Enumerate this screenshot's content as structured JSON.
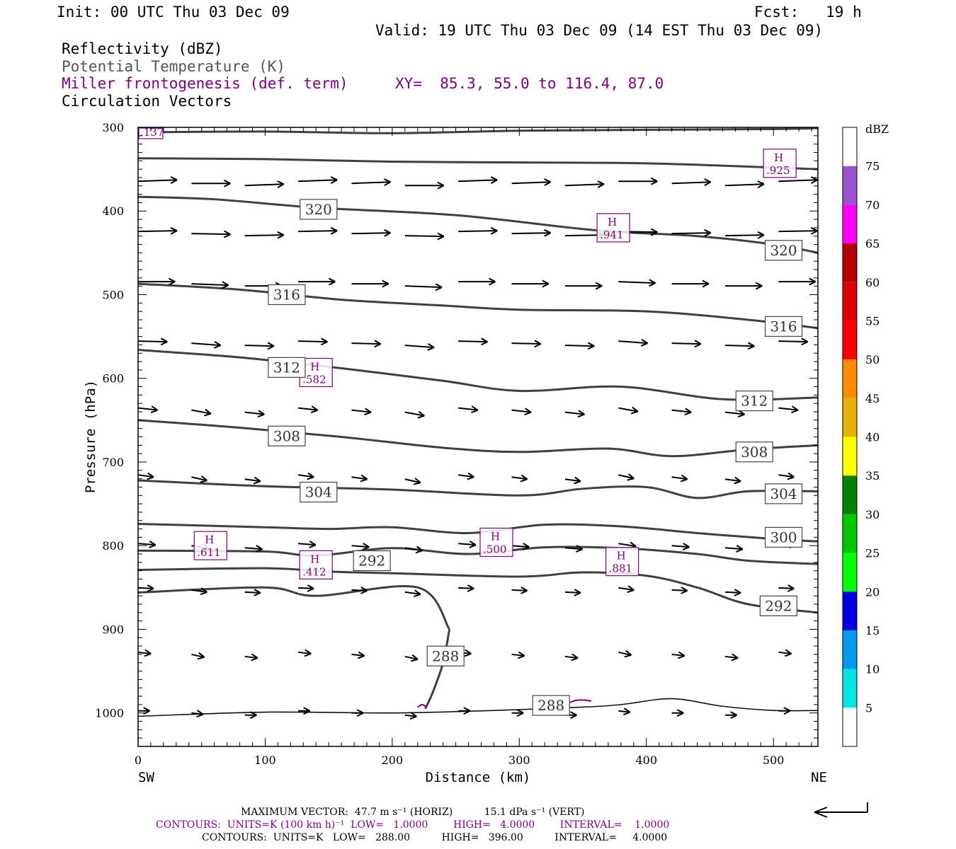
{
  "header": {
    "init": "Init: 00 UTC Thu 03 Dec 09",
    "fcst": "Fcst:   19 h",
    "valid": "Valid: 19 UTC Thu 03 Dec 09 (14 EST Thu 03 Dec 09)",
    "field1": "Reflectivity (dBZ)",
    "field2": "Potential Temperature (K)",
    "field3": "Miller frontogenesis (def. term)",
    "xy": "XY=  85.3, 55.0 to 116.4, 87.0",
    "field4": "Circulation Vectors"
  },
  "colors": {
    "theta_contour": "#404040",
    "frontogenesis": "#800080",
    "text": "#000000"
  },
  "chart_data": {
    "type": "line",
    "xlabel": "Distance (km)",
    "ylabel": "Pressure (hPa)",
    "xlim": [
      0,
      535
    ],
    "ylim": [
      1040,
      300
    ],
    "x_ticks": [
      "0",
      "100",
      "200",
      "300",
      "400",
      "500"
    ],
    "y_ticks": [
      "300",
      "400",
      "500",
      "600",
      "700",
      "800",
      "900",
      "1000"
    ],
    "x_end_left": "SW",
    "x_end_right": "NE",
    "colorbar": {
      "unit": "dBZ",
      "labels": [
        "5",
        "10",
        "15",
        "20",
        "25",
        "30",
        "35",
        "40",
        "45",
        "50",
        "55",
        "60",
        "65",
        "70",
        "75"
      ],
      "colors": [
        "#ffffff",
        "#00e5e5",
        "#0099ee",
        "#0000e0",
        "#00ff00",
        "#00c800",
        "#008200",
        "#ffff00",
        "#e6b400",
        "#ff8c00",
        "#ff0000",
        "#dd0000",
        "#b40000",
        "#ff00ff",
        "#9955cc",
        "#ffffff"
      ]
    },
    "theta_contours": [
      {
        "x": [
          0,
          100,
          200,
          300,
          400,
          500,
          535
        ],
        "y": [
          306,
          305,
          307,
          304,
          303,
          302,
          301
        ]
      },
      {
        "x": [
          0,
          100,
          200,
          300,
          400,
          500,
          535
        ],
        "y": [
          337,
          338,
          341,
          342,
          343,
          348,
          350
        ]
      },
      {
        "x": [
          0,
          60,
          140,
          250,
          360,
          440,
          500,
          535
        ],
        "y": [
          383,
          386,
          396,
          405,
          423,
          430,
          440,
          450
        ]
      },
      {
        "x": [
          0,
          80,
          160,
          240,
          300,
          400,
          480,
          535
        ],
        "y": [
          487,
          494,
          506,
          513,
          518,
          520,
          530,
          540
        ]
      },
      {
        "x": [
          0,
          80,
          160,
          240,
          300,
          380,
          460,
          535
        ],
        "y": [
          566,
          575,
          588,
          603,
          615,
          610,
          625,
          623
        ]
      },
      {
        "x": [
          0,
          80,
          160,
          240,
          300,
          370,
          420,
          480,
          535
        ],
        "y": [
          650,
          659,
          670,
          683,
          688,
          684,
          693,
          685,
          680
        ]
      },
      {
        "x": [
          0,
          100,
          200,
          300,
          350,
          400,
          440,
          480,
          535
        ],
        "y": [
          722,
          729,
          733,
          740,
          732,
          730,
          743,
          735,
          735
        ]
      },
      {
        "x": [
          0,
          100,
          150,
          200,
          260,
          320,
          380,
          440,
          500,
          535
        ],
        "y": [
          774,
          778,
          780,
          778,
          785,
          775,
          777,
          785,
          792,
          795
        ]
      },
      {
        "x": [
          0,
          100,
          140,
          200,
          260,
          320,
          380,
          440,
          480,
          535
        ],
        "y": [
          806,
          807,
          812,
          803,
          810,
          802,
          803,
          810,
          818,
          822
        ]
      },
      {
        "x": [
          0,
          100,
          150,
          200,
          300,
          350,
          400,
          440,
          480,
          535
        ],
        "y": [
          829,
          827,
          831,
          833,
          837,
          832,
          836,
          850,
          870,
          880
        ]
      },
      {
        "x": [
          0,
          100,
          140,
          220,
          245
        ],
        "y": [
          856,
          850,
          860,
          850,
          900
        ]
      },
      {
        "x": [
          245,
          240,
          232,
          226
        ],
        "y": [
          900,
          940,
          975,
          995
        ]
      },
      {
        "x": [
          0,
          100,
          200,
          280,
          350,
          380,
          420,
          460,
          500,
          535
        ],
        "y": [
          1004,
          999,
          1000,
          997,
          993,
          990,
          983,
          992,
          997,
          997
        ]
      }
    ],
    "theta_labels": [
      {
        "text": "320",
        "x": 142,
        "y": 398
      },
      {
        "text": "320",
        "x": 508,
        "y": 447
      },
      {
        "text": "316",
        "x": 117,
        "y": 500
      },
      {
        "text": "316",
        "x": 508,
        "y": 538
      },
      {
        "text": "312",
        "x": 117,
        "y": 587
      },
      {
        "text": "312",
        "x": 485,
        "y": 627
      },
      {
        "text": "308",
        "x": 117,
        "y": 669
      },
      {
        "text": "308",
        "x": 485,
        "y": 688
      },
      {
        "text": "304",
        "x": 142,
        "y": 736
      },
      {
        "text": "304",
        "x": 508,
        "y": 738
      },
      {
        "text": "300",
        "x": 508,
        "y": 790
      },
      {
        "text": "292",
        "x": 184,
        "y": 818
      },
      {
        "text": "292",
        "x": 504,
        "y": 872
      },
      {
        "text": "288",
        "x": 242,
        "y": 932
      },
      {
        "text": "288",
        "x": 325,
        "y": 991
      }
    ],
    "frontogenesis_highs": [
      {
        "text": ".925",
        "x": 505,
        "y": 343
      },
      {
        "text": ".941",
        "x": 374,
        "y": 420
      },
      {
        "text": ".582",
        "x": 140,
        "y": 593
      },
      {
        "text": ".611",
        "x": 57,
        "y": 800
      },
      {
        "text": ".412",
        "x": 140,
        "y": 823
      },
      {
        "text": ".500",
        "x": 282,
        "y": 796
      },
      {
        "text": ".881",
        "x": 381,
        "y": 819
      }
    ],
    "frontogenesis_top_left": ".137",
    "high_marker": "H",
    "vectors": {
      "rows": [
        367,
        427,
        487,
        558,
        638,
        718,
        800,
        853,
        930,
        1000
      ],
      "x_start": 0,
      "x_step": 42,
      "lengths": [
        1.0,
        1.0,
        0.95,
        0.75,
        0.5,
        0.4,
        0.45,
        0.4,
        0.33,
        0.3
      ],
      "pressure_tilt": [
        -2,
        -1,
        0,
        1,
        3,
        3,
        2,
        1,
        2,
        0
      ]
    }
  },
  "footer": {
    "max_vector": "MAXIMUM VECTOR:  47.7 m s⁻¹ (HORIZ)          15.1 dPa s⁻¹ (VERT)",
    "contours1": "CONTOURS:  UNITS=K (100 km h)⁻¹  LOW=   1.0000        HIGH=   4.0000        INTERVAL=    1.0000",
    "contours2": "CONTOURS:  UNITS=K   LOW=   288.00          HIGH=   396.00          INTERVAL=     4.0000"
  }
}
